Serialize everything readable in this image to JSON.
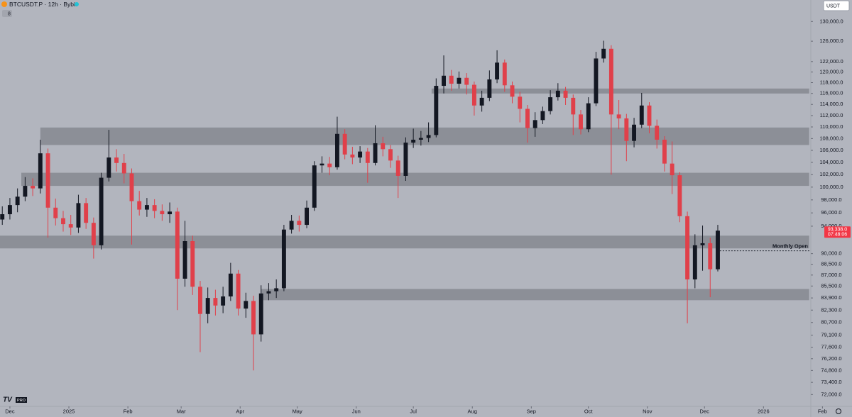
{
  "chart_data": {
    "type": "candlestick",
    "title": "BTCUSDT.P · 12h · Bybit",
    "indicator_count": "8",
    "currency": "USDT",
    "brand": "PRO",
    "log_scale": true,
    "up_color": "#131722",
    "down_color": "#e0404a",
    "zone_color": "#464850",
    "xlim": [
      -5.2,
      427.6
    ],
    "ylim": [
      70900,
      134500
    ],
    "xticks": [
      {
        "value": 0,
        "label": "Dec"
      },
      {
        "value": 31,
        "label": "2025"
      },
      {
        "value": 62,
        "label": "Feb"
      },
      {
        "value": 90,
        "label": "Mar"
      },
      {
        "value": 121,
        "label": "Apr"
      },
      {
        "value": 151,
        "label": "May"
      },
      {
        "value": 182,
        "label": "Jun"
      },
      {
        "value": 212,
        "label": "Jul"
      },
      {
        "value": 243,
        "label": "Aug"
      },
      {
        "value": 274,
        "label": "Sep"
      },
      {
        "value": 304,
        "label": "Oct"
      },
      {
        "value": 335,
        "label": "Nov"
      },
      {
        "value": 365,
        "label": "Dec"
      },
      {
        "value": 396,
        "label": "2026"
      },
      {
        "value": 427,
        "label": "Feb"
      }
    ],
    "yticks": [
      {
        "value": 130000,
        "label": "130,000.0"
      },
      {
        "value": 126000,
        "label": "126,000.0"
      },
      {
        "value": 122000,
        "label": "122,000.0"
      },
      {
        "value": 120000,
        "label": "120,000.0"
      },
      {
        "value": 118000,
        "label": "118,000.0"
      },
      {
        "value": 116000,
        "label": "116,000.0"
      },
      {
        "value": 114000,
        "label": "114,000.0"
      },
      {
        "value": 112000,
        "label": "112,000.0"
      },
      {
        "value": 110000,
        "label": "110,000.0"
      },
      {
        "value": 108000,
        "label": "108,000.0"
      },
      {
        "value": 106000,
        "label": "106,000.0"
      },
      {
        "value": 104000,
        "label": "104,000.0"
      },
      {
        "value": 102000,
        "label": "102,000.0"
      },
      {
        "value": 100000,
        "label": "100,000.0"
      },
      {
        "value": 98000,
        "label": "98,000.0"
      },
      {
        "value": 96000,
        "label": "96,000.0"
      },
      {
        "value": 94000,
        "label": "94,000.0"
      },
      {
        "value": 90000,
        "label": "90,000.0"
      },
      {
        "value": 88500,
        "label": "88,500.0"
      },
      {
        "value": 87000,
        "label": "87,000.0"
      },
      {
        "value": 85500,
        "label": "85,500.0"
      },
      {
        "value": 83900,
        "label": "83,900.0"
      },
      {
        "value": 82300,
        "label": "82,300.0"
      },
      {
        "value": 80700,
        "label": "80,700.0"
      },
      {
        "value": 79100,
        "label": "79,100.0"
      },
      {
        "value": 77600,
        "label": "77,600.0"
      },
      {
        "value": 76200,
        "label": "76,200.0"
      },
      {
        "value": 74800,
        "label": "74,800.0"
      },
      {
        "value": 73400,
        "label": "73,400.0"
      },
      {
        "value": 72000,
        "label": "72,000.0"
      }
    ],
    "zones": [
      {
        "low": 115980,
        "high": 116900,
        "start": 221.6,
        "end": 420
      },
      {
        "low": 106900,
        "high": 109900,
        "start": 16,
        "end": 420
      },
      {
        "low": 100200,
        "high": 102300,
        "start": 6,
        "end": 420
      },
      {
        "low": 90750,
        "high": 92600,
        "start": -5.2,
        "end": 420
      },
      {
        "low": 83600,
        "high": 85100,
        "start": 132,
        "end": 420
      }
    ],
    "monthly_open": {
      "label": "Monthly Open",
      "value": 90400,
      "start": 371.6
    },
    "last_price": {
      "value": 93338,
      "label": "93,338.0",
      "countdown": "07:48:06",
      "color": "#f23645"
    },
    "x": [
      -4,
      0,
      4,
      8,
      12,
      16,
      20,
      24,
      28,
      32,
      36,
      40,
      44,
      48,
      52,
      56,
      60,
      64,
      68,
      72,
      76,
      80,
      84,
      88,
      92,
      96,
      100,
      104,
      108,
      112,
      116,
      120,
      124,
      128,
      132,
      136,
      140,
      144,
      148,
      152,
      156,
      160,
      164,
      168,
      172,
      176,
      180,
      184,
      188,
      192,
      196,
      200,
      204,
      208,
      212,
      216,
      220,
      224,
      228,
      232,
      236,
      240,
      244,
      248,
      252,
      256,
      260,
      264,
      268,
      272,
      276,
      280,
      284,
      288,
      292,
      296,
      300,
      304,
      308,
      312,
      316,
      320,
      324,
      328,
      332,
      336,
      340,
      344,
      348,
      352,
      356,
      360,
      364,
      368,
      372
    ],
    "open": [
      95000,
      95800,
      97200,
      98500,
      100200,
      99800,
      105500,
      96800,
      95200,
      94300,
      93800,
      97500,
      94500,
      91200,
      101500,
      104800,
      103900,
      102200,
      97800,
      96500,
      97200,
      96300,
      95800,
      96200,
      86500,
      91800,
      85400,
      81800,
      83900,
      82900,
      84100,
      87200,
      82500,
      83500,
      79200,
      84500,
      84800,
      85200,
      93500,
      94800,
      94200,
      96800,
      103500,
      103800,
      103200,
      108800,
      105300,
      104800,
      105800,
      103900,
      107200,
      106200,
      104300,
      101800,
      107300,
      107800,
      108100,
      108600,
      117400,
      119300,
      117800,
      118900,
      117600,
      113800,
      115200,
      118600,
      121800,
      117500,
      115400,
      113200,
      109800,
      111200,
      112800,
      115300,
      116500,
      115200,
      112200,
      109600,
      114200,
      122600,
      124500,
      112200,
      111500,
      107600,
      110400,
      113800,
      110200,
      107800,
      103800,
      101900,
      95500,
      86400,
      91200,
      91500,
      87800
    ],
    "high": [
      97000,
      98300,
      99800,
      101600,
      101400,
      107800,
      106300,
      98200,
      96300,
      95700,
      98800,
      98300,
      95300,
      102300,
      109500,
      106200,
      105400,
      103000,
      99400,
      98300,
      98100,
      97300,
      97600,
      96800,
      94800,
      92600,
      86200,
      85300,
      85000,
      85400,
      88700,
      87700,
      84600,
      84200,
      85600,
      85900,
      86400,
      94200,
      95700,
      95600,
      97900,
      104200,
      105000,
      104900,
      111800,
      109600,
      106600,
      106700,
      106400,
      110300,
      108300,
      106900,
      105100,
      108200,
      109700,
      109300,
      110800,
      118800,
      123200,
      120400,
      120100,
      119800,
      118200,
      116500,
      120300,
      124200,
      122400,
      118200,
      116300,
      113900,
      112600,
      113600,
      116600,
      117900,
      117200,
      115800,
      113000,
      115300,
      123900,
      126100,
      125200,
      114800,
      112300,
      111600,
      116100,
      114400,
      111300,
      108400,
      107500,
      102400,
      96200,
      92800,
      94100,
      92300,
      94200
    ],
    "low": [
      94200,
      95000,
      96100,
      97800,
      98600,
      99000,
      92300,
      94100,
      93200,
      92700,
      93000,
      93600,
      89300,
      90600,
      100900,
      102500,
      100600,
      91300,
      95600,
      95400,
      95200,
      94800,
      94500,
      82300,
      85400,
      84300,
      77000,
      80600,
      81600,
      81900,
      83500,
      81600,
      81300,
      74800,
      78300,
      83600,
      83900,
      84800,
      92900,
      93200,
      93700,
      96300,
      102300,
      101900,
      102800,
      104500,
      103700,
      103900,
      100700,
      103500,
      105000,
      103100,
      98300,
      101000,
      106400,
      106800,
      107400,
      108200,
      116000,
      116500,
      116900,
      115800,
      112000,
      112700,
      114600,
      117900,
      116300,
      114200,
      110800,
      107300,
      108300,
      110500,
      112200,
      114700,
      113900,
      108600,
      108700,
      109100,
      113700,
      121800,
      102000,
      109600,
      104200,
      106500,
      109800,
      108900,
      106300,
      102500,
      98900,
      94600,
      80600,
      85200,
      87600,
      84000,
      87500
    ],
    "close": [
      95800,
      97200,
      98500,
      100200,
      99800,
      105500,
      96800,
      95200,
      94300,
      93800,
      97500,
      94500,
      91200,
      101500,
      104800,
      103900,
      102200,
      97800,
      96500,
      97200,
      96300,
      95800,
      96200,
      86500,
      91800,
      85400,
      81800,
      83900,
      82900,
      84100,
      87200,
      82500,
      83500,
      79200,
      84500,
      84800,
      85200,
      93500,
      94800,
      94200,
      96800,
      103500,
      103800,
      103200,
      108800,
      105300,
      104800,
      105800,
      103900,
      107200,
      106200,
      104300,
      101800,
      107300,
      107800,
      108100,
      108600,
      117400,
      119300,
      117800,
      118900,
      117600,
      113800,
      115200,
      118600,
      121800,
      117500,
      115400,
      113200,
      109800,
      111200,
      112800,
      115300,
      116500,
      115200,
      112200,
      109600,
      114200,
      122600,
      124500,
      112200,
      111500,
      107600,
      110400,
      113800,
      110200,
      107800,
      103800,
      101900,
      95500,
      86400,
      91200,
      91500,
      87800,
      93338
    ]
  }
}
